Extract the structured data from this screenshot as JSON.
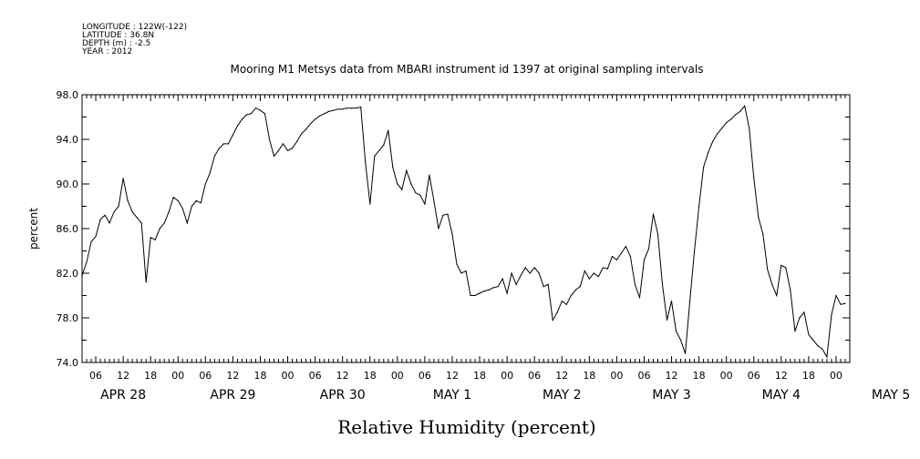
{
  "metadata": {
    "longitude": "LONGITUDE : 122W(-122)",
    "latitude": "LATITUDE : 36.8N",
    "depth": "DEPTH (m) : -2.5",
    "year": "YEAR : 2012"
  },
  "chart_data": {
    "type": "line",
    "title": "Mooring M1 Metsys data from MBARI instrument id 1397 at original sampling intervals",
    "xlabel": "Relative Humidity (percent)",
    "ylabel": "percent",
    "ylim": [
      74.0,
      98.0
    ],
    "yticks": [
      "74.0",
      "78.0",
      "82.0",
      "86.0",
      "90.0",
      "94.0",
      "98.0"
    ],
    "x_unit": "hours since 2012-04-28 00:00",
    "xlim": [
      3.0,
      171.0
    ],
    "hour_ticks": [
      "06",
      "12",
      "18",
      "00",
      "06",
      "12",
      "18",
      "00",
      "06",
      "12",
      "18",
      "00",
      "06",
      "12",
      "18",
      "00",
      "06",
      "12",
      "18",
      "00",
      "06",
      "12",
      "18",
      "00",
      "06",
      "12",
      "18",
      "00"
    ],
    "day_labels": [
      "APR 28",
      "APR 29",
      "APR 30",
      "MAY  1",
      "MAY  2",
      "MAY  3",
      "MAY  4",
      "MAY  5"
    ],
    "grid": false,
    "series": [
      {
        "x": [
          3,
          4,
          5,
          6,
          7,
          8,
          9,
          10,
          11,
          12,
          13,
          14,
          15,
          16,
          17,
          18,
          19,
          20,
          21,
          22,
          23,
          24,
          25,
          26,
          27,
          28,
          29,
          30,
          31,
          32,
          33,
          34,
          35,
          36,
          37,
          38,
          39,
          40,
          41,
          42,
          43,
          44,
          45,
          46,
          47,
          48,
          49,
          50,
          51,
          52,
          53,
          54,
          55,
          56,
          57,
          58,
          59,
          60,
          61,
          62,
          63,
          64,
          65,
          66,
          67,
          68,
          69,
          70,
          71,
          72,
          73,
          74,
          75,
          76,
          77,
          78,
          79,
          80,
          81,
          82,
          83,
          84,
          85,
          86,
          87,
          88,
          89,
          90,
          91,
          92,
          93,
          94,
          95,
          96,
          97,
          98,
          99,
          100,
          101,
          102,
          103,
          104,
          105,
          106,
          107,
          108,
          109,
          110,
          111,
          112,
          113,
          114,
          115,
          116,
          117,
          118,
          119,
          120,
          121,
          122,
          123,
          124,
          125,
          126,
          127,
          128,
          129,
          130,
          131,
          132,
          133,
          134,
          135,
          136,
          137,
          138,
          139,
          140,
          141,
          142,
          143,
          144,
          145,
          146,
          147,
          148,
          149,
          150,
          151,
          152,
          153,
          154,
          155,
          156,
          157,
          158,
          159,
          160,
          161,
          162,
          163,
          164,
          165,
          166,
          167,
          168,
          169,
          170
        ],
        "values": [
          81.8,
          83.0,
          84.8,
          85.3,
          86.8,
          87.2,
          86.5,
          87.5,
          88.0,
          90.5,
          88.5,
          87.5,
          87.0,
          86.5,
          81.2,
          85.2,
          85.0,
          86.0,
          86.5,
          87.5,
          88.8,
          88.5,
          87.8,
          86.5,
          88.0,
          88.5,
          88.3,
          90.0,
          91.0,
          92.5,
          93.2,
          93.6,
          93.6,
          94.4,
          95.2,
          95.8,
          96.2,
          96.3,
          96.8,
          96.6,
          96.3,
          94.0,
          92.5,
          93.0,
          93.6,
          93.0,
          93.2,
          93.8,
          94.5,
          94.9,
          95.4,
          95.8,
          96.1,
          96.3,
          96.5,
          96.6,
          96.7,
          96.7,
          96.8,
          96.8,
          96.8,
          96.9,
          92.0,
          88.2,
          92.5,
          93.0,
          93.5,
          94.8,
          91.5,
          90.0,
          89.5,
          91.2,
          90.0,
          89.2,
          89.0,
          88.2,
          90.8,
          88.5,
          86.0,
          87.2,
          87.3,
          85.5,
          82.8,
          82.0,
          82.2,
          80.0,
          80.0,
          80.2,
          80.4,
          80.5,
          80.7,
          80.8,
          81.5,
          80.2,
          82.0,
          81.0,
          81.8,
          82.5,
          82.0,
          82.5,
          82.0,
          80.8,
          81.0,
          77.8,
          78.5,
          79.5,
          79.2,
          80.0,
          80.5,
          80.8,
          82.2,
          81.5,
          82.0,
          81.7,
          82.5,
          82.4,
          83.5,
          83.2,
          83.8,
          84.4,
          83.5,
          81.0,
          79.8,
          83.2,
          84.2,
          87.3,
          85.5,
          81.0,
          77.8,
          79.5,
          76.8,
          76.0,
          74.8,
          79.5,
          84.0,
          88.0,
          91.5,
          92.8,
          93.8,
          94.5,
          95.0,
          95.5,
          95.8,
          96.2,
          96.5,
          97.0,
          95.0,
          90.5,
          87.0,
          85.5,
          82.3,
          81.0,
          80.0,
          82.7,
          82.5,
          80.5,
          76.8,
          78.0,
          78.5,
          76.5,
          76.0,
          75.5,
          75.2,
          74.5,
          78.3,
          80.0,
          79.2,
          79.3
        ]
      }
    ]
  }
}
